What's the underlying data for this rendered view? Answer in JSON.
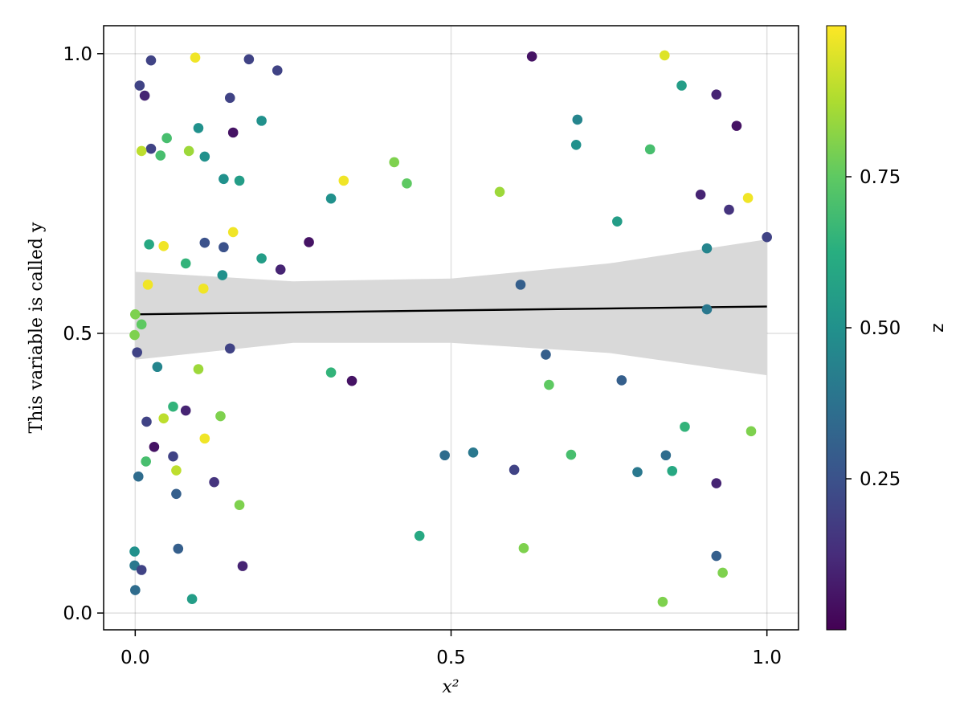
{
  "chart_data": {
    "type": "scatter",
    "title": "",
    "xlabel": "x²",
    "ylabel": "This variable is called y",
    "xlim": [
      -0.05,
      1.05
    ],
    "ylim": [
      -0.03,
      1.05
    ],
    "xticks": [
      "0.0",
      "0.5",
      "1.0"
    ],
    "yticks": [
      "0.0",
      "0.5",
      "1.0"
    ],
    "grid": true,
    "colorbar": {
      "label": "z",
      "colormap": "viridis",
      "range": [
        0.0,
        1.0
      ],
      "ticks": [
        "0.25",
        "0.50",
        "0.75"
      ]
    },
    "fit_line": {
      "x": [
        0.0,
        1.0
      ],
      "y": [
        0.534,
        0.548
      ]
    },
    "confidence_band": {
      "x": [
        0.0,
        0.25,
        0.5,
        0.75,
        1.0
      ],
      "upper": [
        0.61,
        0.593,
        0.598,
        0.625,
        0.668
      ],
      "lower": [
        0.453,
        0.483,
        0.483,
        0.465,
        0.425
      ]
    },
    "points": [
      {
        "x": 0.025,
        "y": 0.988,
        "z": 0.2
      },
      {
        "x": 0.095,
        "y": 0.993,
        "z": 0.98
      },
      {
        "x": 0.18,
        "y": 0.99,
        "z": 0.2
      },
      {
        "x": 0.225,
        "y": 0.97,
        "z": 0.2
      },
      {
        "x": 0.007,
        "y": 0.943,
        "z": 0.2
      },
      {
        "x": 0.015,
        "y": 0.925,
        "z": 0.1
      },
      {
        "x": 0.15,
        "y": 0.921,
        "z": 0.2
      },
      {
        "x": 0.2,
        "y": 0.88,
        "z": 0.5
      },
      {
        "x": 0.1,
        "y": 0.867,
        "z": 0.5
      },
      {
        "x": 0.155,
        "y": 0.859,
        "z": 0.05
      },
      {
        "x": 0.05,
        "y": 0.849,
        "z": 0.7
      },
      {
        "x": 0.025,
        "y": 0.83,
        "z": 0.2
      },
      {
        "x": 0.01,
        "y": 0.826,
        "z": 0.9
      },
      {
        "x": 0.04,
        "y": 0.818,
        "z": 0.7
      },
      {
        "x": 0.085,
        "y": 0.826,
        "z": 0.85
      },
      {
        "x": 0.11,
        "y": 0.816,
        "z": 0.5
      },
      {
        "x": 0.14,
        "y": 0.776,
        "z": 0.5
      },
      {
        "x": 0.165,
        "y": 0.773,
        "z": 0.55
      },
      {
        "x": 0.33,
        "y": 0.773,
        "z": 0.98
      },
      {
        "x": 0.31,
        "y": 0.741,
        "z": 0.5
      },
      {
        "x": 0.41,
        "y": 0.806,
        "z": 0.8
      },
      {
        "x": 0.43,
        "y": 0.768,
        "z": 0.75
      },
      {
        "x": 0.155,
        "y": 0.681,
        "z": 0.98
      },
      {
        "x": 0.11,
        "y": 0.662,
        "z": 0.25
      },
      {
        "x": 0.14,
        "y": 0.654,
        "z": 0.25
      },
      {
        "x": 0.022,
        "y": 0.659,
        "z": 0.6
      },
      {
        "x": 0.045,
        "y": 0.656,
        "z": 0.98
      },
      {
        "x": 0.08,
        "y": 0.625,
        "z": 0.65
      },
      {
        "x": 0.2,
        "y": 0.634,
        "z": 0.55
      },
      {
        "x": 0.23,
        "y": 0.614,
        "z": 0.1
      },
      {
        "x": 0.275,
        "y": 0.663,
        "z": 0.05
      },
      {
        "x": 0.138,
        "y": 0.604,
        "z": 0.5
      },
      {
        "x": 0.02,
        "y": 0.587,
        "z": 0.98
      },
      {
        "x": 0.108,
        "y": 0.58,
        "z": 0.98
      },
      {
        "x": 0.0,
        "y": 0.534,
        "z": 0.8
      },
      {
        "x": 0.01,
        "y": 0.516,
        "z": 0.75
      },
      {
        "x": -0.001,
        "y": 0.497,
        "z": 0.8
      },
      {
        "x": 0.003,
        "y": 0.466,
        "z": 0.2
      },
      {
        "x": 0.15,
        "y": 0.473,
        "z": 0.2
      },
      {
        "x": 0.035,
        "y": 0.44,
        "z": 0.45
      },
      {
        "x": 0.1,
        "y": 0.436,
        "z": 0.85
      },
      {
        "x": 0.31,
        "y": 0.43,
        "z": 0.65
      },
      {
        "x": 0.343,
        "y": 0.415,
        "z": 0.05
      },
      {
        "x": 0.06,
        "y": 0.369,
        "z": 0.65
      },
      {
        "x": 0.08,
        "y": 0.362,
        "z": 0.1
      },
      {
        "x": 0.045,
        "y": 0.348,
        "z": 0.9
      },
      {
        "x": 0.135,
        "y": 0.352,
        "z": 0.8
      },
      {
        "x": 0.018,
        "y": 0.342,
        "z": 0.2
      },
      {
        "x": 0.11,
        "y": 0.312,
        "z": 0.98
      },
      {
        "x": 0.03,
        "y": 0.297,
        "z": 0.05
      },
      {
        "x": 0.06,
        "y": 0.28,
        "z": 0.2
      },
      {
        "x": 0.017,
        "y": 0.271,
        "z": 0.7
      },
      {
        "x": 0.065,
        "y": 0.255,
        "z": 0.9
      },
      {
        "x": 0.005,
        "y": 0.244,
        "z": 0.35
      },
      {
        "x": 0.125,
        "y": 0.234,
        "z": 0.15
      },
      {
        "x": 0.065,
        "y": 0.213,
        "z": 0.3
      },
      {
        "x": 0.165,
        "y": 0.193,
        "z": 0.8
      },
      {
        "x": 0.068,
        "y": 0.115,
        "z": 0.3
      },
      {
        "x": -0.001,
        "y": 0.11,
        "z": 0.5
      },
      {
        "x": -0.001,
        "y": 0.085,
        "z": 0.4
      },
      {
        "x": 0.01,
        "y": 0.077,
        "z": 0.2
      },
      {
        "x": 0.17,
        "y": 0.084,
        "z": 0.1
      },
      {
        "x": 0.0,
        "y": 0.041,
        "z": 0.35
      },
      {
        "x": 0.09,
        "y": 0.025,
        "z": 0.55
      },
      {
        "x": 0.628,
        "y": 0.995,
        "z": 0.05
      },
      {
        "x": 0.838,
        "y": 0.997,
        "z": 0.95
      },
      {
        "x": 0.865,
        "y": 0.943,
        "z": 0.55
      },
      {
        "x": 0.92,
        "y": 0.927,
        "z": 0.1
      },
      {
        "x": 0.7,
        "y": 0.882,
        "z": 0.45
      },
      {
        "x": 0.952,
        "y": 0.871,
        "z": 0.05
      },
      {
        "x": 0.698,
        "y": 0.837,
        "z": 0.5
      },
      {
        "x": 0.815,
        "y": 0.829,
        "z": 0.7
      },
      {
        "x": 0.577,
        "y": 0.753,
        "z": 0.85
      },
      {
        "x": 0.895,
        "y": 0.748,
        "z": 0.1
      },
      {
        "x": 0.97,
        "y": 0.742,
        "z": 0.98
      },
      {
        "x": 0.94,
        "y": 0.721,
        "z": 0.15
      },
      {
        "x": 0.763,
        "y": 0.7,
        "z": 0.55
      },
      {
        "x": 1.0,
        "y": 0.672,
        "z": 0.2
      },
      {
        "x": 0.905,
        "y": 0.652,
        "z": 0.45
      },
      {
        "x": 0.61,
        "y": 0.587,
        "z": 0.3
      },
      {
        "x": 0.905,
        "y": 0.543,
        "z": 0.4
      },
      {
        "x": 0.65,
        "y": 0.462,
        "z": 0.3
      },
      {
        "x": 0.77,
        "y": 0.416,
        "z": 0.3
      },
      {
        "x": 0.655,
        "y": 0.408,
        "z": 0.75
      },
      {
        "x": 0.87,
        "y": 0.333,
        "z": 0.65
      },
      {
        "x": 0.975,
        "y": 0.325,
        "z": 0.8
      },
      {
        "x": 0.535,
        "y": 0.287,
        "z": 0.4
      },
      {
        "x": 0.49,
        "y": 0.282,
        "z": 0.35
      },
      {
        "x": 0.69,
        "y": 0.283,
        "z": 0.7
      },
      {
        "x": 0.84,
        "y": 0.282,
        "z": 0.35
      },
      {
        "x": 0.6,
        "y": 0.256,
        "z": 0.2
      },
      {
        "x": 0.795,
        "y": 0.252,
        "z": 0.4
      },
      {
        "x": 0.85,
        "y": 0.254,
        "z": 0.6
      },
      {
        "x": 0.92,
        "y": 0.232,
        "z": 0.1
      },
      {
        "x": 0.45,
        "y": 0.138,
        "z": 0.6
      },
      {
        "x": 0.615,
        "y": 0.116,
        "z": 0.8
      },
      {
        "x": 0.92,
        "y": 0.102,
        "z": 0.3
      },
      {
        "x": 0.93,
        "y": 0.072,
        "z": 0.8
      },
      {
        "x": 0.835,
        "y": 0.02,
        "z": 0.8
      }
    ]
  }
}
